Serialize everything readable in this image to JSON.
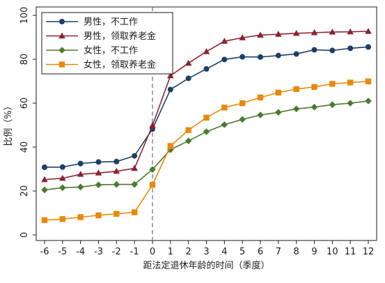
{
  "chart_data": {
    "type": "line",
    "x": [
      -6,
      -5,
      -4,
      -3,
      -2,
      -1,
      0,
      1,
      2,
      3,
      4,
      5,
      6,
      7,
      8,
      9,
      10,
      11,
      12
    ],
    "xlabel": "距法定退休年龄的时间（季度）",
    "ylabel": "比例（%）",
    "xlim": [
      -6,
      12
    ],
    "ylim": [
      0,
      100
    ],
    "yticks": [
      0,
      20,
      40,
      60,
      80,
      100
    ],
    "grid": false,
    "legend_position": "top-left",
    "reference_line_x": 0,
    "series": [
      {
        "name": "男性，不工作",
        "color": "#1c3f66",
        "marker": "circle",
        "values": [
          30.8,
          30.9,
          32.5,
          33.2,
          33.4,
          36.0,
          48.2,
          66.2,
          71.3,
          75.6,
          79.9,
          81.1,
          81.0,
          81.7,
          82.4,
          84.3,
          84.0,
          85.0,
          85.6
        ]
      },
      {
        "name": "男性，领取养老金",
        "color": "#8b2232",
        "marker": "triangle",
        "values": [
          25.2,
          25.8,
          27.6,
          28.2,
          29.0,
          30.3,
          49.8,
          72.5,
          78.2,
          83.5,
          88.2,
          89.8,
          91.0,
          91.4,
          91.8,
          92.1,
          92.4,
          92.5,
          92.7
        ]
      },
      {
        "name": "女性，不工作",
        "color": "#4c7a2e",
        "marker": "diamond",
        "values": [
          20.5,
          21.5,
          21.8,
          22.8,
          23.0,
          23.0,
          29.8,
          38.8,
          42.8,
          47.0,
          50.2,
          52.6,
          54.6,
          55.8,
          57.4,
          58.2,
          59.3,
          60.0,
          61.0
        ]
      },
      {
        "name": "女性，领取养老金",
        "color": "#e8890c",
        "marker": "square",
        "values": [
          6.7,
          7.2,
          8.1,
          8.9,
          9.6,
          10.3,
          22.8,
          40.5,
          47.7,
          53.4,
          58.0,
          60.0,
          62.6,
          64.8,
          66.4,
          67.4,
          68.8,
          69.4,
          69.9
        ]
      }
    ]
  }
}
